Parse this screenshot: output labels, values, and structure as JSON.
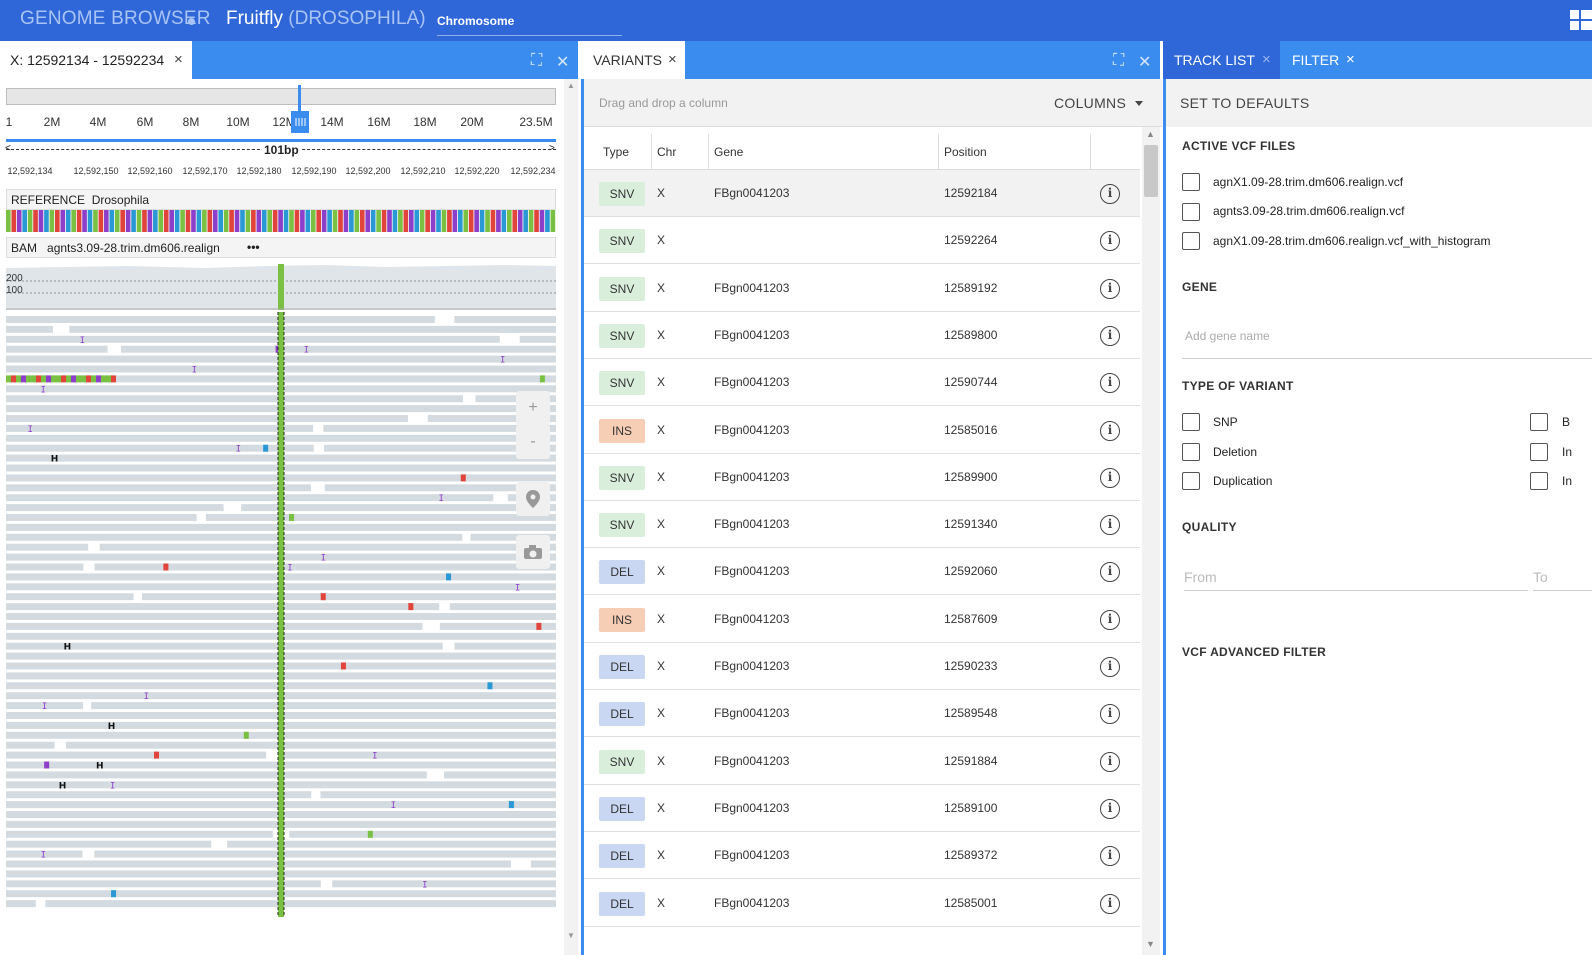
{
  "header": {
    "brand": "GENOME BROWSER",
    "reference_name": "Fruitfly",
    "reference_sub": "(DROSOPHILA)",
    "chromosome_label": "Chromosome"
  },
  "browser_tab": {
    "label": "X: 12592134 - 12592234",
    "close": "×"
  },
  "variants_tab": {
    "label": "VARIANTS",
    "close": "×"
  },
  "tracklist_tab": {
    "label": "TRACK LIST",
    "close": "×"
  },
  "filter_tab": {
    "label": "FILTER",
    "close": "×"
  },
  "window_controls": {
    "maximize": "⛶",
    "close": "✕"
  },
  "ruler": {
    "ticks": [
      "1",
      "2M",
      "4M",
      "6M",
      "8M",
      "10M",
      "12M",
      "14M",
      "16M",
      "18M",
      "20M",
      "23.5M"
    ],
    "span_label": "101bp",
    "coords": [
      "12,592,134",
      "12,592,150",
      "12,592,160",
      "12,592,170",
      "12,592,180",
      "12,592,190",
      "12,592,200",
      "12,592,210",
      "12,592,220",
      "12,592,234"
    ]
  },
  "reference_track": {
    "type": "REFERENCE",
    "name": "Drosophila"
  },
  "bam_track": {
    "type": "BAM",
    "name": "agnts3.09-28.trim.dm606.realign",
    "menu": "•••"
  },
  "coverage": {
    "max_label": "200",
    "mid_label": "100"
  },
  "tools": {
    "zoom_in": "+",
    "zoom_out": "-"
  },
  "variants": {
    "drag_hint": "Drag and drop a column",
    "columns_button": "COLUMNS",
    "headers": {
      "type": "Type",
      "chr": "Chr",
      "gene": "Gene",
      "position": "Position"
    },
    "rows": [
      {
        "type": "SNV",
        "chr": "X",
        "gene": "FBgn0041203",
        "position": "12592184"
      },
      {
        "type": "SNV",
        "chr": "X",
        "gene": "",
        "position": "12592264"
      },
      {
        "type": "SNV",
        "chr": "X",
        "gene": "FBgn0041203",
        "position": "12589192"
      },
      {
        "type": "SNV",
        "chr": "X",
        "gene": "FBgn0041203",
        "position": "12589800"
      },
      {
        "type": "SNV",
        "chr": "X",
        "gene": "FBgn0041203",
        "position": "12590744"
      },
      {
        "type": "INS",
        "chr": "X",
        "gene": "FBgn0041203",
        "position": "12585016"
      },
      {
        "type": "SNV",
        "chr": "X",
        "gene": "FBgn0041203",
        "position": "12589900"
      },
      {
        "type": "SNV",
        "chr": "X",
        "gene": "FBgn0041203",
        "position": "12591340"
      },
      {
        "type": "DEL",
        "chr": "X",
        "gene": "FBgn0041203",
        "position": "12592060"
      },
      {
        "type": "INS",
        "chr": "X",
        "gene": "FBgn0041203",
        "position": "12587609"
      },
      {
        "type": "DEL",
        "chr": "X",
        "gene": "FBgn0041203",
        "position": "12590233"
      },
      {
        "type": "DEL",
        "chr": "X",
        "gene": "FBgn0041203",
        "position": "12589548"
      },
      {
        "type": "SNV",
        "chr": "X",
        "gene": "FBgn0041203",
        "position": "12591884"
      },
      {
        "type": "DEL",
        "chr": "X",
        "gene": "FBgn0041203",
        "position": "12589100"
      },
      {
        "type": "DEL",
        "chr": "X",
        "gene": "FBgn0041203",
        "position": "12589372"
      },
      {
        "type": "DEL",
        "chr": "X",
        "gene": "FBgn0041203",
        "position": "12585001"
      }
    ],
    "type_colors": {
      "SNV": "#d9efdc",
      "INS": "#f6cdb5",
      "DEL": "#c9d7f2"
    },
    "info_icon": "i"
  },
  "filter": {
    "set_defaults": "SET TO DEFAULTS",
    "active_vcf_title": "ACTIVE VCF FILES",
    "vcf_files": [
      "agnX1.09-28.trim.dm606.realign.vcf",
      "agnts3.09-28.trim.dm606.realign.vcf",
      "agnX1.09-28.trim.dm606.realign.vcf_with_histogram"
    ],
    "gene_title": "GENE",
    "gene_placeholder": "Add gene name",
    "type_title": "TYPE OF VARIANT",
    "variant_types": [
      "SNP",
      "Deletion",
      "Duplication"
    ],
    "variant_types_right": [
      "B",
      "In",
      "In"
    ],
    "quality_title": "QUALITY",
    "quality_from": "From",
    "quality_to": "To",
    "advanced_title": "VCF ADVANCED FILTER"
  },
  "colors": {
    "header_bg": "#2f67d8",
    "tab_bg": "#3b8cef",
    "tab_active": "#2f67d8",
    "read_gray": "#d3dbe0",
    "mismatch_green": "#7ac143",
    "mismatch_red": "#e0443a",
    "mismatch_purple": "#8e3fc9",
    "mismatch_blue": "#2a98d4"
  }
}
